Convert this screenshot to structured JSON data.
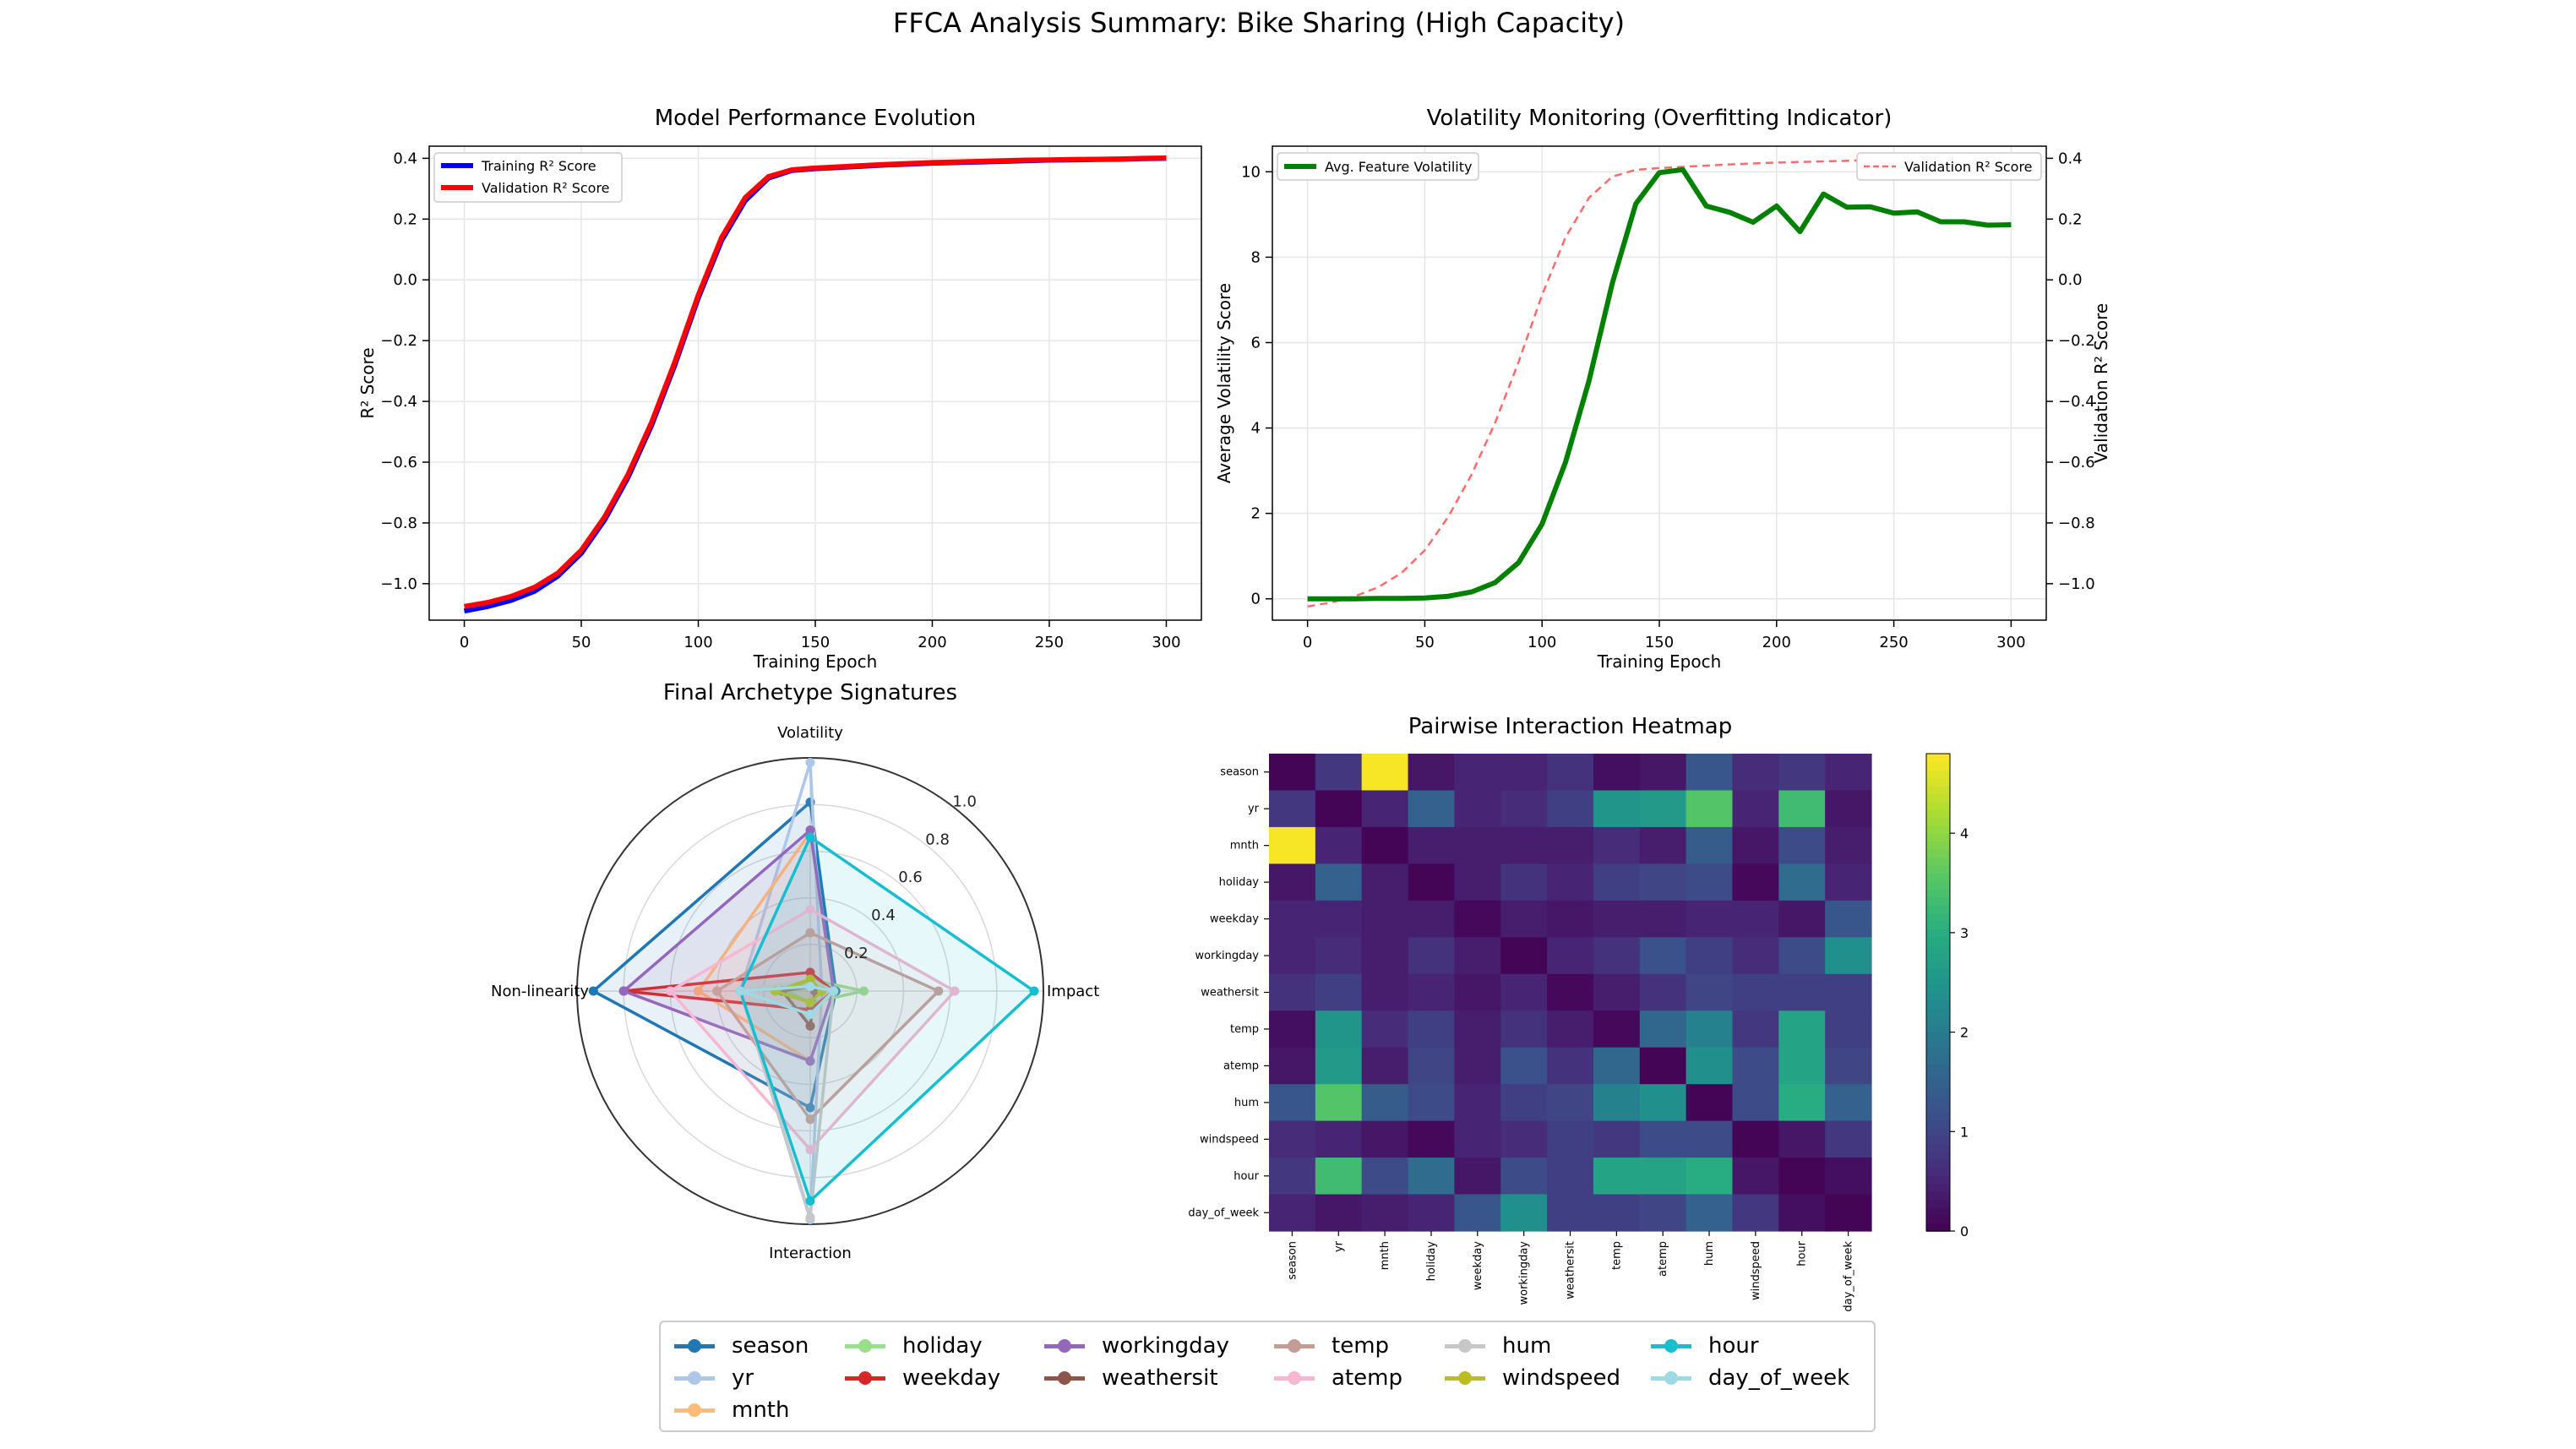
{
  "figure_title": "FFCA Analysis Summary: Bike Sharing (High Capacity)",
  "colors": {
    "season": "#1f77b4",
    "yr": "#aec7e8",
    "mnth": "#ffbb78",
    "holiday": "#98df8a",
    "weekday": "#d62728",
    "workingday": "#9467bd",
    "weathersit": "#8c564b",
    "temp": "#c49c94",
    "atemp": "#f7b6d2",
    "hum": "#c7c7c7",
    "windspeed": "#bcbd22",
    "hour": "#17becf",
    "day_of_week": "#9edae5",
    "train": "#0000ff",
    "val": "#ff0000",
    "volatility": "#008000",
    "val_dashed": "#ff6b6b",
    "grid": "#e6e6e6"
  },
  "chart_data": [
    {
      "id": "performance",
      "type": "line",
      "title": "Model Performance Evolution",
      "xlabel": "Training Epoch",
      "ylabel": "R² Score",
      "xlim": [
        -15,
        315
      ],
      "ylim": [
        -1.12,
        0.44
      ],
      "xticks": [
        0,
        50,
        100,
        150,
        200,
        250,
        300
      ],
      "yticks": [
        -1.0,
        -0.8,
        -0.6,
        -0.4,
        -0.2,
        0.0,
        0.2,
        0.4
      ],
      "ytick_labels": [
        "−1.0",
        "−0.8",
        "−0.6",
        "−0.4",
        "−0.2",
        "0.0",
        "0.2",
        "0.4"
      ],
      "x": [
        0,
        10,
        20,
        30,
        40,
        50,
        60,
        70,
        80,
        90,
        100,
        110,
        120,
        130,
        140,
        150,
        160,
        170,
        180,
        190,
        200,
        210,
        220,
        230,
        240,
        250,
        260,
        270,
        280,
        290,
        300
      ],
      "series": [
        {
          "name": "Training R² Score",
          "color_key": "train",
          "values": [
            -1.09,
            -1.075,
            -1.055,
            -1.025,
            -0.975,
            -0.9,
            -0.79,
            -0.65,
            -0.48,
            -0.28,
            -0.06,
            0.13,
            0.26,
            0.335,
            0.36,
            0.366,
            0.37,
            0.374,
            0.378,
            0.381,
            0.384,
            0.386,
            0.388,
            0.39,
            0.392,
            0.394,
            0.395,
            0.396,
            0.397,
            0.399,
            0.4
          ]
        },
        {
          "name": "Validation R² Score",
          "color_key": "val",
          "values": [
            -1.075,
            -1.062,
            -1.042,
            -1.012,
            -0.965,
            -0.89,
            -0.78,
            -0.64,
            -0.47,
            -0.27,
            -0.05,
            0.14,
            0.27,
            0.34,
            0.362,
            0.368,
            0.372,
            0.376,
            0.38,
            0.383,
            0.386,
            0.388,
            0.39,
            0.392,
            0.394,
            0.395,
            0.396,
            0.397,
            0.398,
            0.4,
            0.401
          ]
        }
      ],
      "legend": [
        "Training R² Score",
        "Validation R² Score"
      ],
      "legend_position": "upper-left"
    },
    {
      "id": "volatility",
      "type": "line",
      "title": "Volatility Monitoring (Overfitting Indicator)",
      "xlabel": "Training Epoch",
      "ylabel": "Average Volatility Score",
      "y2label": "Validation R² Score",
      "xlim": [
        -15,
        315
      ],
      "ylim": [
        -0.5,
        10.6
      ],
      "y2lim": [
        -1.12,
        0.44
      ],
      "xticks": [
        0,
        50,
        100,
        150,
        200,
        250,
        300
      ],
      "yticks": [
        0,
        2,
        4,
        6,
        8,
        10
      ],
      "y2ticks": [
        -1.0,
        -0.8,
        -0.6,
        -0.4,
        -0.2,
        0.0,
        0.2,
        0.4
      ],
      "y2tick_labels": [
        "−1.0",
        "−0.8",
        "−0.6",
        "−0.4",
        "−0.2",
        "0.0",
        "0.2",
        "0.4"
      ],
      "x": [
        0,
        10,
        20,
        30,
        40,
        50,
        60,
        70,
        80,
        90,
        100,
        110,
        120,
        130,
        140,
        150,
        160,
        170,
        180,
        190,
        200,
        210,
        220,
        230,
        240,
        250,
        260,
        270,
        280,
        290,
        300
      ],
      "volatility": [
        0.0,
        0.0,
        0.0,
        0.01,
        0.01,
        0.02,
        0.06,
        0.16,
        0.38,
        0.85,
        1.75,
        3.2,
        5.1,
        7.4,
        9.25,
        9.98,
        10.05,
        9.2,
        9.05,
        8.82,
        9.2,
        8.6,
        9.48,
        9.17,
        9.18,
        9.03,
        9.06,
        8.83,
        8.83,
        8.75,
        8.76
      ],
      "validation": [
        -1.075,
        -1.062,
        -1.042,
        -1.012,
        -0.965,
        -0.89,
        -0.78,
        -0.64,
        -0.47,
        -0.27,
        -0.05,
        0.14,
        0.27,
        0.34,
        0.362,
        0.368,
        0.372,
        0.376,
        0.38,
        0.383,
        0.386,
        0.388,
        0.39,
        0.392,
        0.394,
        0.395,
        0.396,
        0.397,
        0.398,
        0.4,
        0.401
      ],
      "legend_left": "Avg. Feature Volatility",
      "legend_right": "Validation R² Score"
    },
    {
      "id": "radar",
      "type": "radar",
      "title": "Final Archetype Signatures",
      "axes": [
        "Volatility",
        "Impact",
        "Interaction",
        "Non-linearity"
      ],
      "rlim": [
        0,
        1.0
      ],
      "rticks": [
        0.2,
        0.4,
        0.6,
        0.8,
        1.0
      ],
      "series": [
        {
          "name": "season",
          "values": [
            0.81,
            0.11,
            0.5,
            0.93
          ]
        },
        {
          "name": "yr",
          "values": [
            0.98,
            0.05,
            0.98,
            0.3
          ]
        },
        {
          "name": "mnth",
          "values": [
            0.68,
            0.1,
            0.3,
            0.48
          ]
        },
        {
          "name": "holiday",
          "values": [
            0.05,
            0.23,
            0.05,
            0.1
          ]
        },
        {
          "name": "weekday",
          "values": [
            0.08,
            0.1,
            0.08,
            0.8
          ]
        },
        {
          "name": "workingday",
          "values": [
            0.69,
            0.1,
            0.3,
            0.8
          ]
        },
        {
          "name": "weathersit",
          "values": [
            0.02,
            0.02,
            0.15,
            0.12
          ]
        },
        {
          "name": "temp",
          "values": [
            0.25,
            0.55,
            0.55,
            0.4
          ]
        },
        {
          "name": "atemp",
          "values": [
            0.35,
            0.62,
            0.68,
            0.6
          ]
        },
        {
          "name": "hum",
          "values": [
            0.05,
            0.1,
            0.97,
            0.3
          ]
        },
        {
          "name": "windspeed",
          "values": [
            0.05,
            0.05,
            0.05,
            0.15
          ]
        },
        {
          "name": "hour",
          "values": [
            0.66,
            0.96,
            0.9,
            0.3
          ]
        },
        {
          "name": "day_of_week",
          "values": [
            0.02,
            0.1,
            0.1,
            0.3
          ]
        }
      ]
    },
    {
      "id": "heatmap",
      "type": "heatmap",
      "title": "Pairwise Interaction Heatmap",
      "rows": [
        "season",
        "yr",
        "mnth",
        "holiday",
        "weekday",
        "workingday",
        "weathersit",
        "temp",
        "atemp",
        "hum",
        "windspeed",
        "hour",
        "day_of_week"
      ],
      "cols": [
        "season",
        "yr",
        "mnth",
        "holiday",
        "weekday",
        "workingday",
        "weathersit",
        "temp",
        "atemp",
        "hum",
        "windspeed",
        "hour",
        "day_of_week"
      ],
      "vmin": 0,
      "vmax": 4.8,
      "colorbar_ticks": [
        0,
        1,
        2,
        3,
        4
      ],
      "values": [
        [
          0.05,
          0.8,
          4.75,
          0.3,
          0.5,
          0.5,
          0.7,
          0.2,
          0.3,
          1.3,
          0.6,
          0.8,
          0.5
        ],
        [
          0.8,
          0.05,
          0.5,
          1.5,
          0.5,
          0.6,
          0.9,
          2.5,
          2.6,
          3.5,
          0.5,
          3.3,
          0.3
        ],
        [
          4.75,
          0.5,
          0.05,
          0.4,
          0.4,
          0.4,
          0.4,
          0.6,
          0.4,
          1.4,
          0.3,
          1.1,
          0.4
        ],
        [
          0.3,
          1.5,
          0.4,
          0.05,
          0.4,
          0.7,
          0.5,
          0.9,
          1.0,
          1.1,
          0.1,
          1.7,
          0.5
        ],
        [
          0.5,
          0.5,
          0.4,
          0.4,
          0.1,
          0.4,
          0.3,
          0.4,
          0.4,
          0.5,
          0.5,
          0.3,
          1.3
        ],
        [
          0.5,
          0.6,
          0.4,
          0.7,
          0.4,
          0.05,
          0.5,
          0.7,
          1.2,
          0.9,
          0.6,
          1.1,
          2.4
        ],
        [
          0.7,
          0.9,
          0.4,
          0.5,
          0.3,
          0.5,
          0.1,
          0.4,
          0.7,
          1.0,
          0.9,
          0.9,
          0.9
        ],
        [
          0.2,
          2.5,
          0.6,
          0.9,
          0.4,
          0.7,
          0.4,
          0.1,
          1.6,
          2.1,
          0.8,
          2.8,
          0.9
        ],
        [
          0.3,
          2.6,
          0.4,
          1.0,
          0.4,
          1.2,
          0.7,
          1.6,
          0.05,
          2.4,
          1.1,
          2.8,
          1.0
        ],
        [
          1.3,
          3.5,
          1.4,
          1.1,
          0.5,
          0.9,
          1.0,
          2.1,
          2.4,
          0.05,
          1.1,
          3.0,
          1.5
        ],
        [
          0.6,
          0.5,
          0.3,
          0.1,
          0.5,
          0.6,
          0.9,
          0.8,
          1.1,
          1.1,
          0.05,
          0.3,
          0.8
        ],
        [
          0.8,
          3.3,
          1.1,
          1.7,
          0.3,
          1.1,
          0.9,
          2.8,
          2.8,
          3.0,
          0.3,
          0.05,
          0.2
        ],
        [
          0.5,
          0.3,
          0.4,
          0.5,
          1.3,
          2.4,
          0.9,
          0.9,
          1.0,
          1.5,
          0.8,
          0.2,
          0.05
        ]
      ]
    }
  ],
  "legend": {
    "items": [
      "season",
      "yr",
      "mnth",
      "holiday",
      "weekday",
      "workingday",
      "weathersit",
      "temp",
      "atemp",
      "hum",
      "windspeed",
      "hour",
      "day_of_week"
    ]
  }
}
